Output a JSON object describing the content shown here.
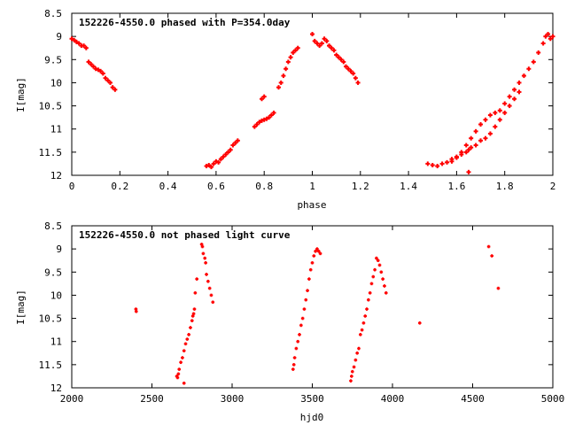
{
  "chart_data": [
    {
      "type": "scatter",
      "title": "152226-4550.0 phased with P=354.0day",
      "xlabel": "phase",
      "ylabel": "I[mag]",
      "xlim": [
        0,
        2
      ],
      "ylim": [
        12,
        8.5
      ],
      "y_inverted": true,
      "xticks": [
        "0",
        "0.2",
        "0.4",
        "0.6",
        "0.8",
        "1",
        "1.2",
        "1.4",
        "1.6",
        "1.8",
        "2"
      ],
      "yticks": [
        "8.5",
        "9",
        "9.5",
        "10",
        "10.5",
        "11",
        "11.5",
        "12"
      ],
      "marker_color": "#ff0000",
      "marker": "plus",
      "grid": false,
      "series": [
        {
          "x": [
            0.0,
            0.01,
            0.02,
            0.03,
            0.04,
            0.05,
            0.06,
            0.07,
            0.08,
            0.09,
            0.1,
            0.11,
            0.12,
            0.13,
            0.14,
            0.15,
            0.16,
            0.17,
            0.18,
            0.56,
            0.57,
            0.58,
            0.59,
            0.6,
            0.61,
            0.62,
            0.63,
            0.64,
            0.65,
            0.66,
            0.67,
            0.68,
            0.69,
            0.76,
            0.77,
            0.78,
            0.79,
            0.8,
            0.81,
            0.82,
            0.83,
            0.84,
            0.79,
            0.8,
            0.86,
            0.87,
            0.88,
            0.89,
            0.9,
            0.91,
            0.92,
            0.93,
            0.94,
            1.0,
            1.01,
            1.02,
            1.03,
            1.04,
            1.05,
            1.06,
            1.07,
            1.08,
            1.09,
            1.1,
            1.11,
            1.12,
            1.13,
            1.14,
            1.15,
            1.16,
            1.17,
            1.18,
            1.19,
            1.48,
            1.5,
            1.52,
            1.54,
            1.56,
            1.58,
            1.6,
            1.62,
            1.64,
            1.65,
            1.66,
            1.68,
            1.7,
            1.72,
            1.74,
            1.76,
            1.78,
            1.8,
            1.82,
            1.84,
            1.86,
            1.58,
            1.6,
            1.62,
            1.64,
            1.66,
            1.68,
            1.7,
            1.72,
            1.74,
            1.76,
            1.78,
            1.8,
            1.82,
            1.84,
            1.86,
            1.88,
            1.9,
            1.92,
            1.94,
            1.96,
            1.97,
            1.98,
            1.99,
            2.0,
            1.65
          ],
          "y": [
            9.05,
            9.08,
            9.12,
            9.15,
            9.2,
            9.2,
            9.25,
            9.55,
            9.6,
            9.65,
            9.7,
            9.72,
            9.75,
            9.8,
            9.9,
            9.95,
            10.0,
            10.1,
            10.15,
            11.8,
            11.78,
            11.82,
            11.75,
            11.7,
            11.72,
            11.65,
            11.6,
            11.55,
            11.5,
            11.45,
            11.35,
            11.3,
            11.25,
            10.95,
            10.9,
            10.85,
            10.82,
            10.8,
            10.78,
            10.75,
            10.7,
            10.65,
            10.35,
            10.3,
            10.1,
            10.0,
            9.85,
            9.7,
            9.55,
            9.45,
            9.35,
            9.3,
            9.25,
            8.95,
            9.1,
            9.15,
            9.2,
            9.15,
            9.05,
            9.1,
            9.2,
            9.25,
            9.3,
            9.4,
            9.45,
            9.5,
            9.55,
            9.65,
            9.7,
            9.75,
            9.8,
            9.9,
            10.0,
            11.75,
            11.78,
            11.8,
            11.75,
            11.72,
            11.65,
            11.6,
            11.55,
            11.5,
            11.45,
            11.4,
            11.35,
            11.25,
            11.2,
            11.1,
            10.95,
            10.8,
            10.65,
            10.5,
            10.35,
            10.2,
            11.7,
            11.62,
            11.5,
            11.35,
            11.2,
            11.05,
            10.9,
            10.8,
            10.7,
            10.65,
            10.6,
            10.45,
            10.3,
            10.15,
            10.0,
            9.85,
            9.7,
            9.55,
            9.35,
            9.15,
            9.0,
            8.95,
            9.05,
            9.0,
            11.93
          ]
        }
      ]
    },
    {
      "type": "scatter",
      "title": "152226-4550.0 not phased light curve",
      "xlabel": "hjd0",
      "ylabel": "I[mag]",
      "xlim": [
        2000,
        5000
      ],
      "ylim": [
        12,
        8.5
      ],
      "y_inverted": true,
      "xticks": [
        "2000",
        "2500",
        "3000",
        "3500",
        "4000",
        "4500",
        "5000"
      ],
      "yticks": [
        "8.5",
        "9",
        "9.5",
        "10",
        "10.5",
        "11",
        "11.5",
        "12"
      ],
      "marker_color": "#ff0000",
      "marker": "plus",
      "grid": false,
      "series": [
        {
          "x": [
            2400,
            2402,
            2655,
            2660,
            2665,
            2670,
            2680,
            2690,
            2700,
            2710,
            2720,
            2730,
            2740,
            2750,
            2755,
            2760,
            2765,
            2700,
            2770,
            2780,
            2810,
            2815,
            2820,
            2830,
            2835,
            2840,
            2850,
            2860,
            2870,
            2880,
            3380,
            3385,
            3390,
            3400,
            3410,
            3420,
            3430,
            3440,
            3450,
            3460,
            3470,
            3480,
            3490,
            3500,
            3510,
            3520,
            3530,
            3540,
            3550,
            3740,
            3745,
            3750,
            3760,
            3770,
            3780,
            3790,
            3800,
            3810,
            3820,
            3830,
            3840,
            3850,
            3860,
            3870,
            3880,
            3890,
            3900,
            3910,
            3920,
            3930,
            3940,
            3950,
            3960,
            4170,
            4600,
            4620,
            4660
          ],
          "y": [
            10.3,
            10.35,
            11.75,
            11.78,
            11.7,
            11.6,
            11.45,
            11.35,
            11.2,
            11.05,
            10.95,
            10.85,
            10.7,
            10.55,
            10.45,
            10.4,
            10.3,
            11.9,
            9.95,
            9.65,
            8.9,
            8.95,
            9.1,
            9.2,
            9.3,
            9.55,
            9.7,
            9.85,
            10.0,
            10.15,
            11.6,
            11.5,
            11.35,
            11.15,
            11.0,
            10.85,
            10.65,
            10.5,
            10.3,
            10.1,
            9.9,
            9.65,
            9.45,
            9.3,
            9.15,
            9.05,
            9.0,
            9.05,
            9.1,
            11.85,
            11.75,
            11.65,
            11.55,
            11.4,
            11.25,
            11.15,
            10.85,
            10.75,
            10.6,
            10.45,
            10.3,
            10.1,
            9.95,
            9.75,
            9.6,
            9.45,
            9.2,
            9.25,
            9.35,
            9.5,
            9.65,
            9.8,
            9.95,
            10.6,
            8.95,
            9.15,
            9.85
          ]
        }
      ]
    }
  ]
}
